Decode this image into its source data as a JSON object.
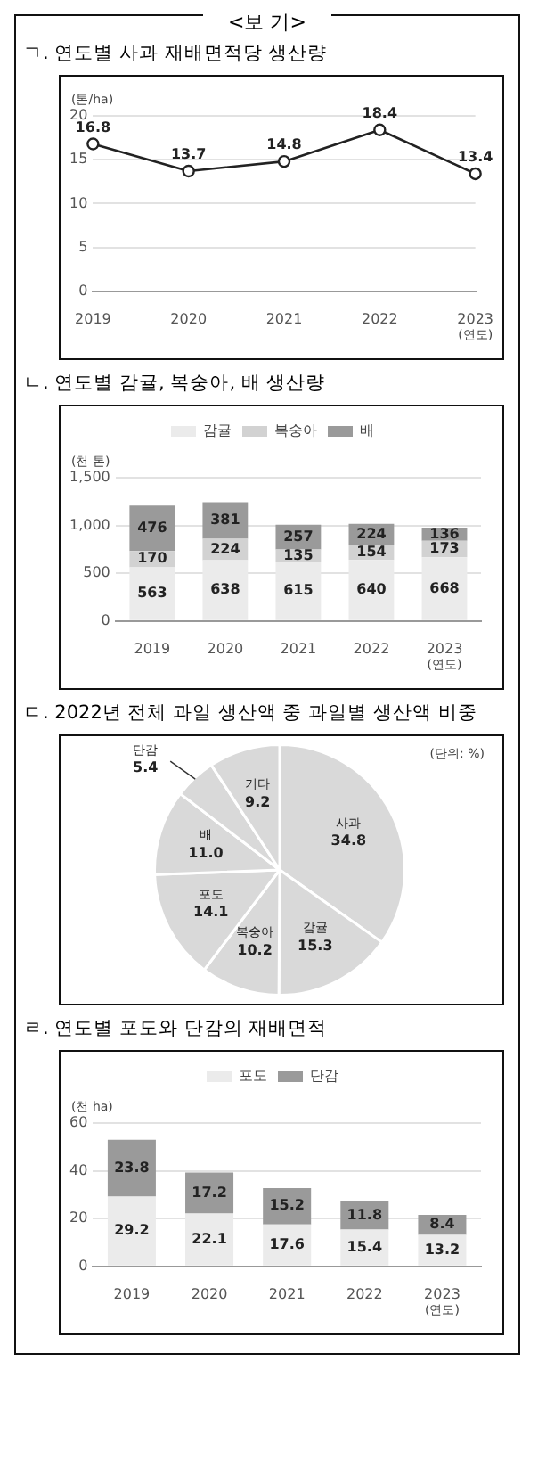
{
  "chart_data": [
    {
      "type": "line",
      "title": "ㄱ.  연도별 사과 재배면적당 생산량",
      "annotations": [
        "<보 기>"
      ],
      "ylabel": "(톤/ha)",
      "xlabel": "(연도)",
      "categories": [
        "2019",
        "2020",
        "2021",
        "2022",
        "2023"
      ],
      "series": [
        {
          "color": "#222222",
          "values": [
            16.8,
            13.7,
            14.8,
            18.4,
            13.4
          ]
        }
      ],
      "ylim": [
        0,
        20
      ],
      "yticks": [
        0,
        5,
        10,
        15,
        20
      ],
      "grid": "y",
      "marker": "circle",
      "data_labels": true
    },
    {
      "type": "bar",
      "title": "ㄴ.  연도별 감귤, 복숭아, 배 생산량",
      "ylabel": "(천 톤)",
      "xlabel": "(연도)",
      "categories": [
        "2019",
        "2020",
        "2021",
        "2022",
        "2023"
      ],
      "stacked": true,
      "series": [
        {
          "name": "감귤",
          "color": "#ebebeb",
          "values": [
            563,
            638,
            615,
            640,
            668
          ]
        },
        {
          "name": "복숭아",
          "color": "#d2d2d2",
          "values": [
            170,
            224,
            135,
            154,
            173
          ]
        },
        {
          "name": "배",
          "color": "#9a9a9a",
          "values": [
            476,
            381,
            257,
            224,
            136
          ]
        }
      ],
      "ylim": [
        0,
        1500
      ],
      "yticks": [
        0,
        500,
        {
          "value": 1000,
          "label": "1,000"
        },
        {
          "value": 1500,
          "label": "1,500"
        }
      ],
      "grid": "y",
      "legend": "top",
      "data_labels": true
    },
    {
      "type": "pie",
      "title": "ㄷ.  2022년 전체 과일 생산액 중 과일별 생산액 비중",
      "annotations": [
        "(단위: %)"
      ],
      "categories": [
        "사과",
        "감귤",
        "복숭아",
        "포도",
        "배",
        "단감",
        "기타"
      ],
      "values": [
        34.8,
        15.3,
        10.2,
        14.1,
        11.0,
        5.4,
        9.2
      ],
      "value_labels": [
        "34.8",
        "15.3",
        "10.2",
        "14.1",
        "11.0",
        "5.4",
        "9.2"
      ],
      "colors": [
        "#d9d9d9",
        "#d9d9d9",
        "#d9d9d9",
        "#d9d9d9",
        "#d9d9d9",
        "#d9d9d9",
        "#d9d9d9"
      ]
    },
    {
      "type": "bar",
      "title": "ㄹ.  연도별 포도와 단감의 재배면적",
      "ylabel": "(천 ha)",
      "xlabel": "(연도)",
      "categories": [
        "2019",
        "2020",
        "2021",
        "2022",
        "2023"
      ],
      "stacked": true,
      "series": [
        {
          "name": "포도",
          "color": "#ebebeb",
          "values": [
            29.2,
            22.1,
            17.6,
            15.4,
            13.2
          ]
        },
        {
          "name": "단감",
          "color": "#9a9a9a",
          "values": [
            23.8,
            17.2,
            15.2,
            11.8,
            8.4
          ]
        }
      ],
      "ylim": [
        0,
        60
      ],
      "yticks": [
        0,
        20,
        40,
        60
      ],
      "grid": "y",
      "legend": "top",
      "data_labels": true
    }
  ]
}
